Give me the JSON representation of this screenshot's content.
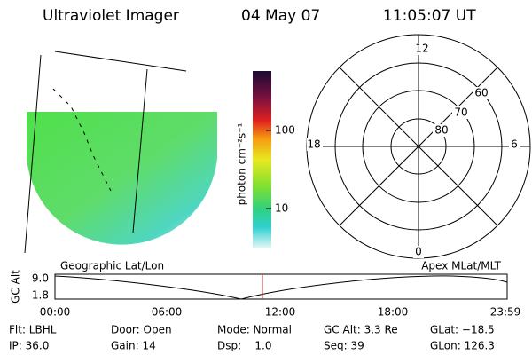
{
  "header": {
    "title": "Ultraviolet Imager",
    "date": "04 May 07",
    "time": "11:05:07 UT"
  },
  "colorbar": {
    "label": "photon cm⁻²s⁻¹",
    "ticks": [
      "100",
      "10"
    ]
  },
  "polar": {
    "mlt_labels": [
      "12",
      "18",
      "6",
      "0"
    ],
    "lat_labels": [
      "60",
      "70",
      "80"
    ]
  },
  "timeline": {
    "left_title": "Geographic Lat/Lon",
    "right_title": "Apex MLat/MLT",
    "axis_label": "GC Alt",
    "y_ticks": [
      "9.0",
      "1.8"
    ],
    "x_ticks": [
      "00:00",
      "06:00",
      "12:00",
      "18:00",
      "23:59"
    ]
  },
  "footer": {
    "rows": [
      [
        "Flt: LBHL",
        "Door: Open",
        "Mode: Normal",
        "GC Alt: 3.3 Re",
        "GLat: −18.5"
      ],
      [
        "IP: 36.0",
        "Gain: 14",
        "Dsp:    1.0",
        "Seq: 39",
        "GLon: 126.3"
      ]
    ]
  }
}
